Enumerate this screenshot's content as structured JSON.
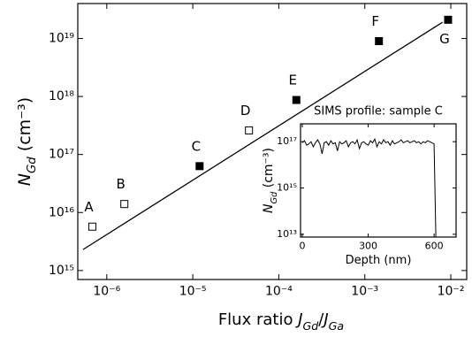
{
  "chart_data": [
    {
      "type": "scatter",
      "xlabel": [
        {
          "text": "Flux ratio ",
          "style": "normal"
        },
        {
          "text": "J",
          "style": "italic"
        },
        {
          "text": "Gd",
          "style": "sub"
        },
        {
          "text": "/",
          "style": "normal"
        },
        {
          "text": "J",
          "style": "italic"
        },
        {
          "text": "Ga",
          "style": "sub"
        }
      ],
      "ylabel": [
        {
          "text": "N",
          "style": "italic"
        },
        {
          "text": "Gd",
          "style": "sub"
        },
        {
          "text": " (cm⁻³)",
          "style": "normal"
        }
      ],
      "log_x": true,
      "log_y": true,
      "xlim": [
        4.6e-07,
        0.0153
      ],
      "ylim": [
        700000000000000.0,
        4e+19
      ],
      "xticks": [
        {
          "value": 1e-06,
          "label": "10⁻⁶"
        },
        {
          "value": 1e-05,
          "label": "10⁻⁵"
        },
        {
          "value": 0.0001,
          "label": "10⁻⁴"
        },
        {
          "value": 0.001,
          "label": "10⁻³"
        },
        {
          "value": 0.01,
          "label": "10⁻²"
        }
      ],
      "yticks": [
        {
          "value": 1000000000000000.0,
          "label": "10¹⁵"
        },
        {
          "value": 1e+16,
          "label": "10¹⁶"
        },
        {
          "value": 1e+17,
          "label": "10¹⁷"
        },
        {
          "value": 1e+18,
          "label": "10¹⁸"
        },
        {
          "value": 1e+19,
          "label": "10¹⁹"
        }
      ],
      "color": "#000000",
      "points": [
        {
          "label": "A",
          "x": 6.8e-07,
          "y": 5700000000000000.0,
          "filled": false
        },
        {
          "label": "B",
          "x": 1.6e-06,
          "y": 1.4e+16,
          "filled": false
        },
        {
          "label": "C",
          "x": 1.2e-05,
          "y": 6.3e+16,
          "filled": true
        },
        {
          "label": "D",
          "x": 4.5e-05,
          "y": 2.6e+17,
          "filled": false
        },
        {
          "label": "E",
          "x": 0.00016,
          "y": 8.7e+17,
          "filled": true
        },
        {
          "label": "F",
          "x": 0.00146,
          "y": 9e+18,
          "filled": true
        },
        {
          "label": "G",
          "x": 0.0093,
          "y": 2.1e+19,
          "filled": true
        }
      ],
      "fit_line": {
        "x": [
          5.3e-07,
          0.008
        ],
        "y": [
          2300000000000000.0,
          1.9e+19
        ]
      }
    },
    {
      "type": "line",
      "title": "SIMS profile: sample C",
      "xlabel": [
        {
          "text": "Depth (nm)",
          "style": "normal"
        }
      ],
      "ylabel": [
        {
          "text": "N",
          "style": "italic"
        },
        {
          "text": "Gd",
          "style": "sub"
        },
        {
          "text": " (cm⁻³)",
          "style": "normal"
        }
      ],
      "log_y": true,
      "xlim": [
        -8,
        700
      ],
      "ylim": [
        7600000000000.0,
        5.9e+17
      ],
      "xticks": [
        0,
        300,
        600
      ],
      "yticks": [
        {
          "value": 10000000000000.0,
          "label": "10¹³"
        },
        {
          "value": 1000000000000000.0,
          "label": "10¹⁵"
        },
        {
          "value": 1e+17,
          "label": "10¹⁷"
        }
      ],
      "color": "#000000",
      "x": [
        0,
        10,
        20,
        30,
        40,
        50,
        60,
        70,
        80,
        90,
        100,
        110,
        120,
        130,
        140,
        150,
        160,
        170,
        180,
        190,
        200,
        210,
        220,
        230,
        240,
        250,
        260,
        270,
        280,
        290,
        300,
        310,
        320,
        330,
        340,
        350,
        360,
        370,
        380,
        390,
        400,
        410,
        420,
        430,
        440,
        450,
        460,
        470,
        480,
        490,
        500,
        510,
        520,
        530,
        540,
        550,
        560,
        570,
        580,
        590,
        600,
        608
      ],
      "values": [
        9e+16,
        1.1e+17,
        7e+16,
        8e+16,
        1e+17,
        6e+16,
        9e+16,
        1.2e+17,
        8e+16,
        3e+16,
        9e+16,
        1e+17,
        7e+16,
        1.1e+17,
        8e+16,
        9e+16,
        4e+16,
        1e+17,
        8e+16,
        9e+16,
        1.1e+17,
        6e+16,
        9e+16,
        1e+17,
        8e+16,
        1.2e+17,
        5e+16,
        9e+16,
        1e+17,
        8e+16,
        7e+16,
        1.1e+17,
        9e+16,
        1.3e+17,
        6e+16,
        1e+17,
        8e+16,
        1.2e+17,
        9e+16,
        1e+17,
        7e+16,
        1.1e+17,
        8e+16,
        9e+16,
        1e+17,
        1.2e+17,
        9e+16,
        1e+17,
        1.1e+17,
        9e+16,
        1e+17,
        1.1e+17,
        9e+16,
        1e+17,
        8e+16,
        1e+17,
        9e+16,
        1.1e+17,
        1e+17,
        9e+16,
        8e+16,
        8000000000000.0
      ]
    }
  ]
}
